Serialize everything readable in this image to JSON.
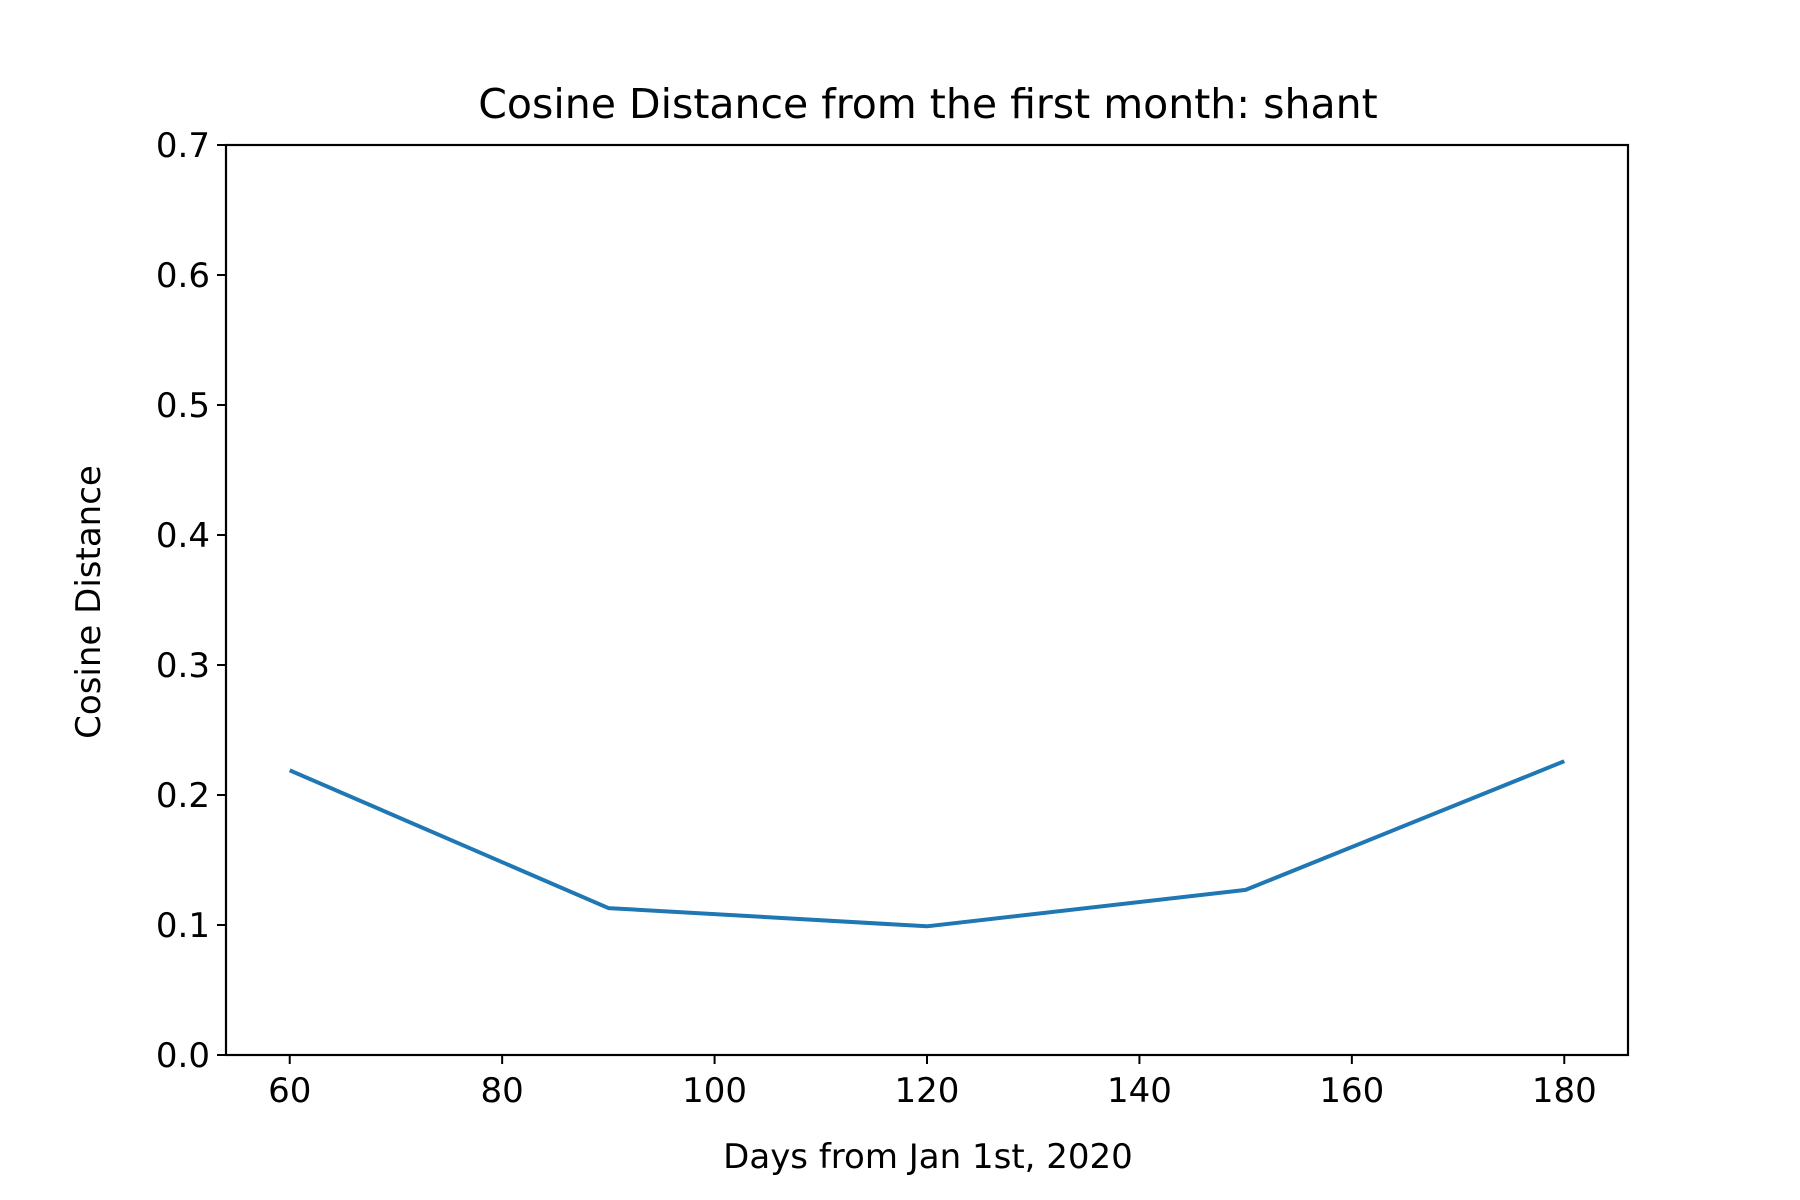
{
  "chart_data": {
    "type": "line",
    "title": "Cosine Distance from the first month: shant",
    "xlabel": "Days from Jan 1st, 2020",
    "ylabel": "Cosine Distance",
    "xlim": [
      54,
      186
    ],
    "ylim": [
      0.0,
      0.7
    ],
    "xticks": [
      60,
      80,
      100,
      120,
      140,
      160,
      180
    ],
    "xtick_labels": [
      "60",
      "80",
      "100",
      "120",
      "140",
      "160",
      "180"
    ],
    "yticks": [
      0.0,
      0.1,
      0.2,
      0.3,
      0.4,
      0.5,
      0.6,
      0.7
    ],
    "ytick_labels": [
      "0.0",
      "0.1",
      "0.2",
      "0.3",
      "0.4",
      "0.5",
      "0.6",
      "0.7"
    ],
    "grid": false,
    "series": [
      {
        "x": [
          60,
          90,
          120,
          150,
          180
        ],
        "y": [
          0.219,
          0.113,
          0.099,
          0.127,
          0.226
        ],
        "color": "#1f77b4"
      }
    ]
  }
}
